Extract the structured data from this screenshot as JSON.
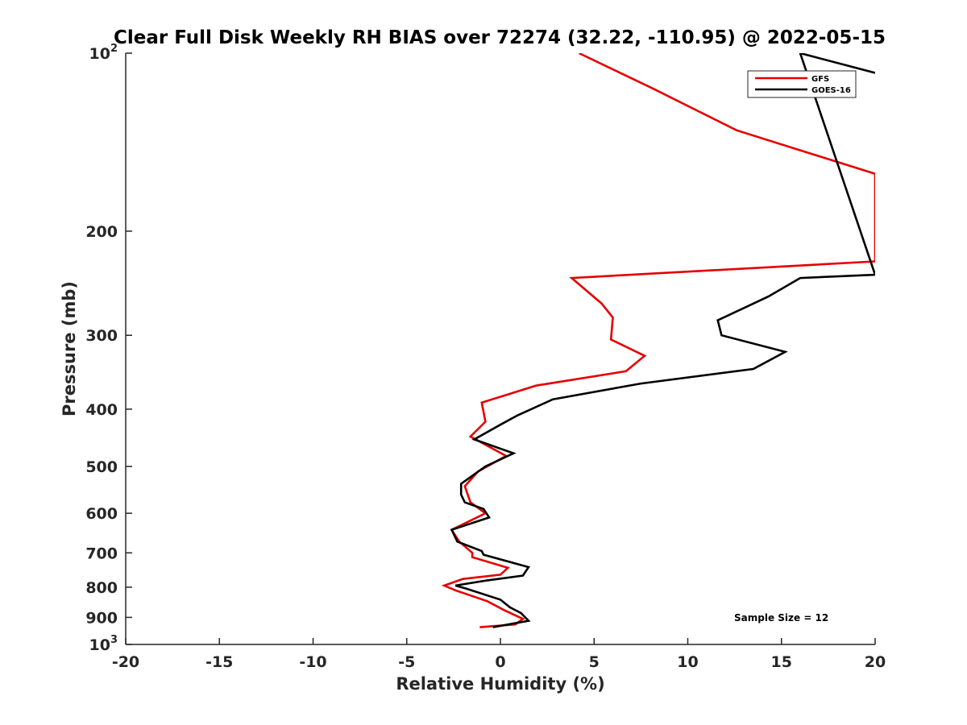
{
  "chart_data": {
    "type": "line",
    "title": "Clear Full Disk Weekly RH BIAS over 72274 (32.22, -110.95) @ 2022-05-15",
    "xlabel": "Relative Humidity (%)",
    "ylabel": "Pressure (mb)",
    "xlim": [
      -20,
      20
    ],
    "ylim": [
      100,
      1000
    ],
    "y_scale": "log",
    "y_reversed": true,
    "grid": false,
    "legend_position": "top-right",
    "x_ticks": [
      {
        "value": -20,
        "label": "-20"
      },
      {
        "value": -15,
        "label": "-15"
      },
      {
        "value": -10,
        "label": "-10"
      },
      {
        "value": -5,
        "label": "-5"
      },
      {
        "value": 0,
        "label": "0"
      },
      {
        "value": 5,
        "label": "5"
      },
      {
        "value": 10,
        "label": "10"
      },
      {
        "value": 15,
        "label": "15"
      },
      {
        "value": 20,
        "label": "20"
      }
    ],
    "y_ticks": [
      {
        "value": 100,
        "label": "10",
        "sup": "2"
      },
      {
        "value": 200,
        "label": "200",
        "sup": ""
      },
      {
        "value": 300,
        "label": "300",
        "sup": ""
      },
      {
        "value": 400,
        "label": "400",
        "sup": ""
      },
      {
        "value": 500,
        "label": "500",
        "sup": ""
      },
      {
        "value": 600,
        "label": "600",
        "sup": ""
      },
      {
        "value": 700,
        "label": "700",
        "sup": ""
      },
      {
        "value": 800,
        "label": "800",
        "sup": ""
      },
      {
        "value": 900,
        "label": "900",
        "sup": ""
      },
      {
        "value": 1000,
        "label": "10",
        "sup": "3"
      }
    ],
    "annotation": "Sample Size = 12",
    "series": [
      {
        "name": "GFS",
        "color": "#e60000",
        "points": [
          [
            4.2,
            100
          ],
          [
            8.2,
            115
          ],
          [
            12.6,
            135
          ],
          [
            20,
            160
          ],
          [
            20,
            225
          ],
          [
            3.8,
            240
          ],
          [
            5.4,
            265
          ],
          [
            6.0,
            280
          ],
          [
            5.9,
            305
          ],
          [
            7.7,
            325
          ],
          [
            6.7,
            345
          ],
          [
            1.9,
            365
          ],
          [
            -1.0,
            390
          ],
          [
            -0.8,
            420
          ],
          [
            -1.6,
            445
          ],
          [
            0.3,
            480
          ],
          [
            -1.2,
            510
          ],
          [
            -1.9,
            540
          ],
          [
            -1.6,
            575
          ],
          [
            -0.8,
            600
          ],
          [
            -2.6,
            640
          ],
          [
            -2.2,
            670
          ],
          [
            -1.5,
            700
          ],
          [
            -1.5,
            712
          ],
          [
            0.4,
            742
          ],
          [
            0.0,
            762
          ],
          [
            -2.0,
            775
          ],
          [
            -3.0,
            795
          ],
          [
            -2.4,
            810
          ],
          [
            -0.7,
            845
          ],
          [
            0.2,
            875
          ],
          [
            1.2,
            905
          ],
          [
            0.8,
            925
          ],
          [
            -1.1,
            935
          ]
        ]
      },
      {
        "name": "GOES-16",
        "color": "#000000",
        "points": [
          [
            20,
            108
          ],
          [
            16,
            100
          ],
          [
            20,
            237
          ],
          [
            16.0,
            240
          ],
          [
            14.3,
            258
          ],
          [
            11.6,
            283
          ],
          [
            11.8,
            300
          ],
          [
            15.2,
            320
          ],
          [
            13.5,
            342
          ],
          [
            7.5,
            362
          ],
          [
            2.8,
            385
          ],
          [
            0.9,
            410
          ],
          [
            0.0,
            425
          ],
          [
            -1.4,
            450
          ],
          [
            0.7,
            475
          ],
          [
            -0.8,
            500
          ],
          [
            -2.1,
            535
          ],
          [
            -2.1,
            558
          ],
          [
            -1.9,
            575
          ],
          [
            -0.9,
            590
          ],
          [
            -0.6,
            610
          ],
          [
            -2.6,
            640
          ],
          [
            -2.3,
            670
          ],
          [
            -1.0,
            695
          ],
          [
            -0.9,
            705
          ],
          [
            1.5,
            740
          ],
          [
            1.2,
            765
          ],
          [
            -0.8,
            780
          ],
          [
            -2.4,
            795
          ],
          [
            -1.8,
            805
          ],
          [
            0.0,
            840
          ],
          [
            0.5,
            865
          ],
          [
            1.1,
            885
          ],
          [
            1.5,
            912
          ],
          [
            -0.4,
            935
          ]
        ]
      }
    ]
  }
}
